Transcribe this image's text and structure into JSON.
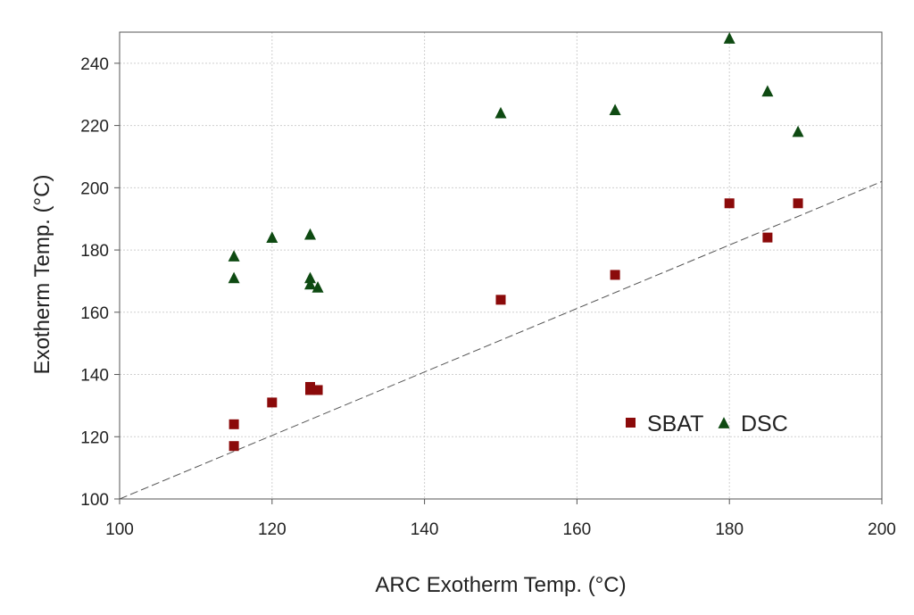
{
  "chart_data": {
    "type": "scatter",
    "title": "",
    "xlabel": "ARC Exotherm Temp. (°C)",
    "ylabel": "Exotherm Temp. (°C)",
    "xlim": [
      100,
      200
    ],
    "ylim": [
      100,
      250
    ],
    "x_ticks": [
      100,
      120,
      140,
      160,
      180,
      200
    ],
    "y_ticks": [
      100,
      120,
      140,
      160,
      180,
      200,
      220,
      240
    ],
    "grid": true,
    "legend_position": "lower-right",
    "reference_line": {
      "style": "dashed",
      "points": [
        [
          100,
          100
        ],
        [
          200,
          200
        ]
      ]
    },
    "series": [
      {
        "name": "SBAT",
        "marker": "square",
        "color": "#8b0a0a",
        "points": [
          [
            115,
            124
          ],
          [
            115,
            117
          ],
          [
            120,
            131
          ],
          [
            125,
            136
          ],
          [
            125,
            135
          ],
          [
            126,
            135
          ],
          [
            150,
            164
          ],
          [
            165,
            172
          ],
          [
            180,
            195
          ],
          [
            185,
            184
          ],
          [
            189,
            195
          ]
        ]
      },
      {
        "name": "DSC",
        "marker": "triangle",
        "color": "#0e4a12",
        "points": [
          [
            115,
            178
          ],
          [
            115,
            171
          ],
          [
            120,
            184
          ],
          [
            125,
            185
          ],
          [
            125,
            171
          ],
          [
            125,
            169
          ],
          [
            126,
            168
          ],
          [
            150,
            224
          ],
          [
            165,
            225
          ],
          [
            180,
            248
          ],
          [
            185,
            231
          ],
          [
            189,
            218
          ]
        ]
      }
    ]
  }
}
